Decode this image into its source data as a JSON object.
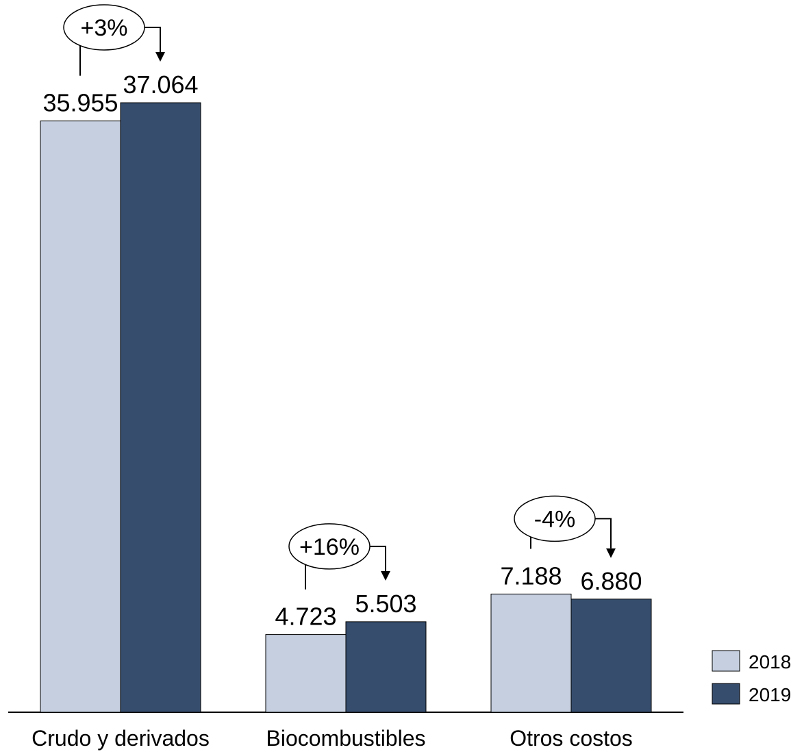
{
  "chart_data": {
    "type": "bar",
    "categories": [
      "Crudo y derivados",
      "Biocombustibles",
      "Otros costos"
    ],
    "series": [
      {
        "name": "2018",
        "values": [
          35955,
          4723,
          7188
        ],
        "labels": [
          "35.955",
          "4.723",
          "7.188"
        ],
        "color": "#c5cfe0"
      },
      {
        "name": "2019",
        "values": [
          37064,
          5503,
          6880
        ],
        "labels": [
          "37.064",
          "5.503",
          "6.880"
        ],
        "color": "#364d6d"
      }
    ],
    "changes": [
      "+3%",
      "+16%",
      "-4%"
    ],
    "legend_position": "bottom-right",
    "ylim": [
      0,
      37064
    ],
    "grid": false,
    "title": "",
    "xlabel": "",
    "ylabel": ""
  }
}
